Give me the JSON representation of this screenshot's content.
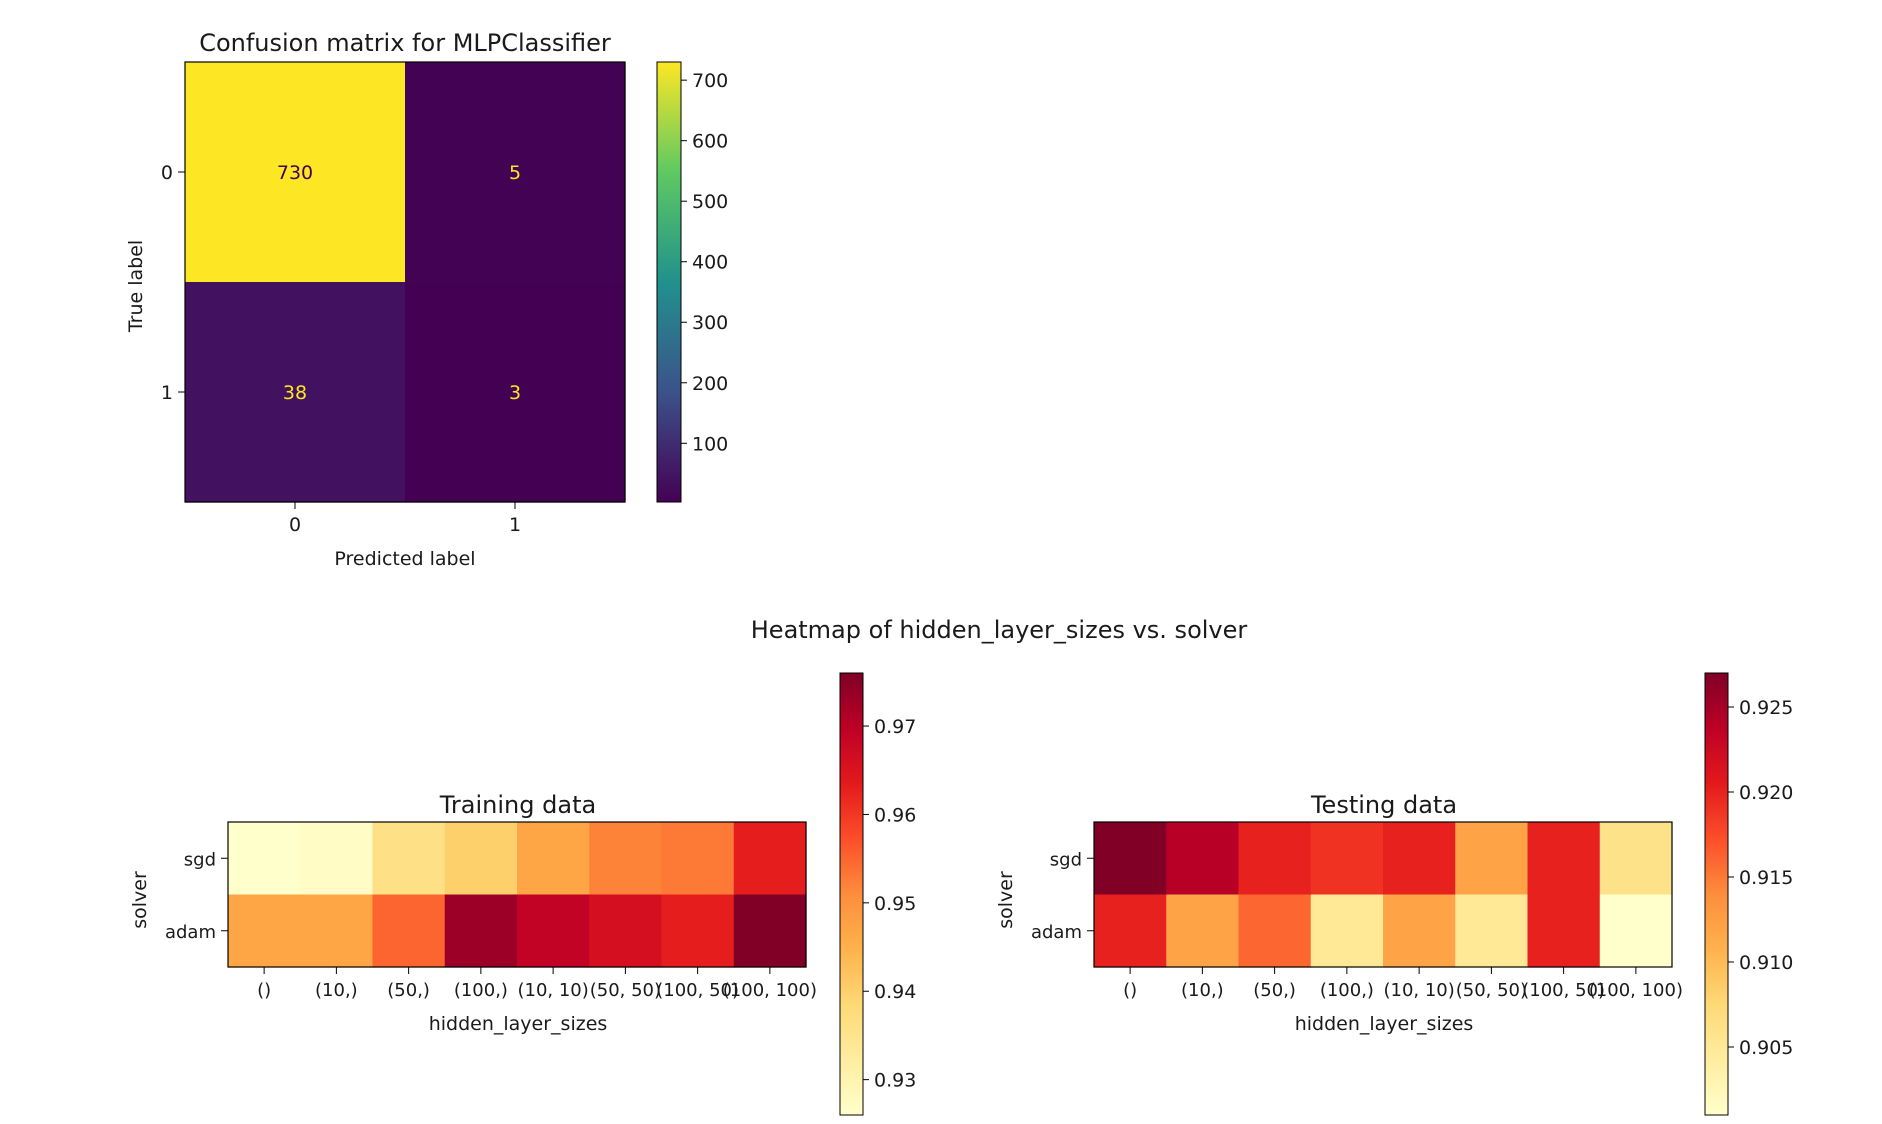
{
  "suptitle": "Heatmap of hidden_layer_sizes vs. solver",
  "chart_data": [
    {
      "type": "heatmap",
      "title": "Confusion matrix for MLPClassifier",
      "xlabel": "Predicted label",
      "ylabel": "True label",
      "x_categories": [
        "0",
        "1"
      ],
      "y_categories": [
        "0",
        "1"
      ],
      "values": [
        [
          730,
          5
        ],
        [
          38,
          3
        ]
      ],
      "colormap": "viridis",
      "colorbar_range": [
        3,
        730
      ],
      "colorbar_ticks": [
        100,
        200,
        300,
        400,
        500,
        600,
        700
      ],
      "annotations": true,
      "annotation_colors": {
        "on_light": "#440154",
        "on_dark": "#fde725"
      }
    },
    {
      "type": "heatmap",
      "title": "Training data",
      "xlabel": "hidden_layer_sizes",
      "ylabel": "solver",
      "x_categories": [
        "()",
        "(10,)",
        "(50,)",
        "(100,)",
        "(10, 10)",
        "(50, 50)",
        "(100, 50)",
        "(100, 100)"
      ],
      "y_categories": [
        "sgd",
        "adam"
      ],
      "values": [
        [
          0.926,
          0.927,
          0.936,
          0.94,
          0.947,
          0.952,
          0.953,
          0.963
        ],
        [
          0.947,
          0.947,
          0.955,
          0.973,
          0.969,
          0.966,
          0.963,
          0.976
        ]
      ],
      "colormap": "YlOrRd",
      "colorbar_range": [
        0.926,
        0.976
      ],
      "colorbar_ticks": [
        0.93,
        0.94,
        0.95,
        0.96,
        0.97
      ]
    },
    {
      "type": "heatmap",
      "title": "Testing data",
      "xlabel": "hidden_layer_sizes",
      "ylabel": "solver",
      "x_categories": [
        "()",
        "(10,)",
        "(50,)",
        "(100,)",
        "(10, 10)",
        "(50, 50)",
        "(100, 50)",
        "(100, 100)"
      ],
      "y_categories": [
        "sgd",
        "adam"
      ],
      "values": [
        [
          0.927,
          0.924,
          0.92,
          0.919,
          0.92,
          0.912,
          0.92,
          0.906
        ],
        [
          0.92,
          0.912,
          0.916,
          0.905,
          0.912,
          0.905,
          0.92,
          0.901
        ]
      ],
      "colormap": "YlOrRd",
      "colorbar_range": [
        0.901,
        0.927
      ],
      "colorbar_ticks": [
        0.905,
        0.91,
        0.915,
        0.92,
        0.925
      ]
    }
  ]
}
